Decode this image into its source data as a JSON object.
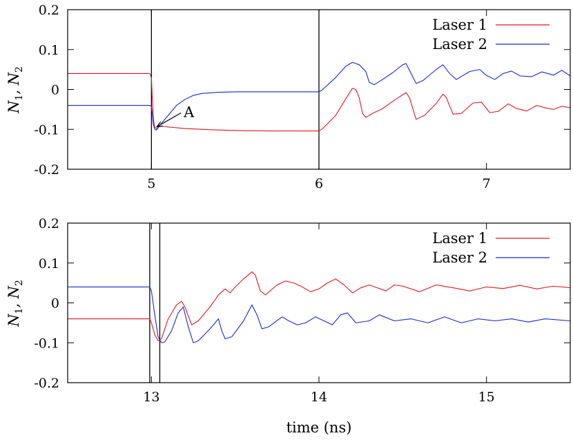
{
  "chart_data": [
    {
      "type": "line",
      "panel": "top",
      "xlabel": "",
      "ylabel_main": "N",
      "ylabel_sub1": "1",
      "ylabel_sep": ", N",
      "ylabel_sub2": "2",
      "xlim": [
        4.5,
        7.5
      ],
      "ylim": [
        -0.2,
        0.2
      ],
      "xticks": [
        5,
        6,
        7
      ],
      "xtick_labels": [
        "5",
        "6",
        "7"
      ],
      "yticks": [
        -0.2,
        -0.1,
        0,
        0.1,
        0.2
      ],
      "ytick_labels": [
        "-0.2",
        "-0.1",
        "0",
        "0.1",
        "0.2"
      ],
      "vlines": [
        5.0,
        6.0
      ],
      "legend_position": "top-right",
      "annotation": {
        "text": "A",
        "x": 5.02,
        "y": -0.097
      },
      "series": [
        {
          "name": "Laser 1",
          "color": "#e8141e",
          "points": [
            [
              4.5,
              0.04
            ],
            [
              4.99,
              0.04
            ],
            [
              5.0,
              0.03
            ],
            [
              5.005,
              -0.02
            ],
            [
              5.01,
              -0.06
            ],
            [
              5.015,
              -0.085
            ],
            [
              5.02,
              -0.095
            ],
            [
              5.03,
              -0.098
            ],
            [
              5.04,
              -0.094
            ],
            [
              5.06,
              -0.092
            ],
            [
              5.1,
              -0.094
            ],
            [
              5.2,
              -0.098
            ],
            [
              5.35,
              -0.101
            ],
            [
              5.5,
              -0.103
            ],
            [
              5.7,
              -0.104
            ],
            [
              6.0,
              -0.104
            ],
            [
              6.02,
              -0.099
            ],
            [
              6.1,
              -0.065
            ],
            [
              6.18,
              -0.01
            ],
            [
              6.2,
              0.003
            ],
            [
              6.22,
              0.0
            ],
            [
              6.24,
              -0.02
            ],
            [
              6.26,
              -0.06
            ],
            [
              6.28,
              -0.07
            ],
            [
              6.32,
              -0.06
            ],
            [
              6.38,
              -0.048
            ],
            [
              6.45,
              -0.027
            ],
            [
              6.52,
              -0.008
            ],
            [
              6.54,
              -0.02
            ],
            [
              6.58,
              -0.075
            ],
            [
              6.63,
              -0.065
            ],
            [
              6.7,
              -0.035
            ],
            [
              6.74,
              -0.012
            ],
            [
              6.76,
              -0.02
            ],
            [
              6.8,
              -0.062
            ],
            [
              6.85,
              -0.06
            ],
            [
              6.92,
              -0.034
            ],
            [
              6.97,
              -0.032
            ],
            [
              7.02,
              -0.058
            ],
            [
              7.07,
              -0.055
            ],
            [
              7.13,
              -0.036
            ],
            [
              7.18,
              -0.048
            ],
            [
              7.24,
              -0.054
            ],
            [
              7.3,
              -0.04
            ],
            [
              7.35,
              -0.046
            ],
            [
              7.4,
              -0.05
            ],
            [
              7.45,
              -0.042
            ],
            [
              7.5,
              -0.046
            ]
          ]
        },
        {
          "name": "Laser 2",
          "color": "#1428d8",
          "points": [
            [
              4.5,
              -0.04
            ],
            [
              4.99,
              -0.04
            ],
            [
              5.0,
              -0.042
            ],
            [
              5.005,
              -0.06
            ],
            [
              5.01,
              -0.085
            ],
            [
              5.02,
              -0.1
            ],
            [
              5.03,
              -0.102
            ],
            [
              5.05,
              -0.09
            ],
            [
              5.1,
              -0.065
            ],
            [
              5.15,
              -0.04
            ],
            [
              5.2,
              -0.025
            ],
            [
              5.25,
              -0.015
            ],
            [
              5.3,
              -0.01
            ],
            [
              5.4,
              -0.007
            ],
            [
              5.5,
              -0.006
            ],
            [
              6.0,
              -0.006
            ],
            [
              6.02,
              -0.001
            ],
            [
              6.1,
              0.03
            ],
            [
              6.16,
              0.058
            ],
            [
              6.2,
              0.068
            ],
            [
              6.24,
              0.062
            ],
            [
              6.28,
              0.045
            ],
            [
              6.3,
              0.018
            ],
            [
              6.33,
              0.012
            ],
            [
              6.38,
              0.025
            ],
            [
              6.44,
              0.042
            ],
            [
              6.5,
              0.062
            ],
            [
              6.52,
              0.065
            ],
            [
              6.55,
              0.04
            ],
            [
              6.58,
              0.015
            ],
            [
              6.62,
              0.022
            ],
            [
              6.7,
              0.05
            ],
            [
              6.74,
              0.062
            ],
            [
              6.78,
              0.04
            ],
            [
              6.82,
              0.025
            ],
            [
              6.9,
              0.045
            ],
            [
              6.96,
              0.05
            ],
            [
              7.0,
              0.035
            ],
            [
              7.05,
              0.025
            ],
            [
              7.1,
              0.04
            ],
            [
              7.15,
              0.046
            ],
            [
              7.2,
              0.034
            ],
            [
              7.27,
              0.032
            ],
            [
              7.33,
              0.044
            ],
            [
              7.4,
              0.036
            ],
            [
              7.45,
              0.048
            ],
            [
              7.5,
              0.034
            ]
          ]
        }
      ]
    },
    {
      "type": "line",
      "panel": "bottom",
      "xlabel": "time (ns)",
      "ylabel_main": "N",
      "ylabel_sub1": "1",
      "ylabel_sep": ", N",
      "ylabel_sub2": "2",
      "xlim": [
        12.5,
        15.5
      ],
      "ylim": [
        -0.2,
        0.2
      ],
      "xticks": [
        13,
        14,
        15
      ],
      "xtick_labels": [
        "13",
        "14",
        "15"
      ],
      "yticks": [
        -0.2,
        -0.1,
        0,
        0.1,
        0.2
      ],
      "ytick_labels": [
        "-0.2",
        "-0.1",
        "0",
        "0.1",
        "0.2"
      ],
      "vlines": [
        12.99,
        13.05
      ],
      "legend_position": "top-right",
      "series": [
        {
          "name": "Laser 1",
          "color": "#e8141e",
          "points": [
            [
              12.5,
              -0.04
            ],
            [
              12.99,
              -0.04
            ],
            [
              13.0,
              -0.05
            ],
            [
              13.02,
              -0.08
            ],
            [
              13.04,
              -0.095
            ],
            [
              13.06,
              -0.09
            ],
            [
              13.1,
              -0.04
            ],
            [
              13.15,
              -0.005
            ],
            [
              13.18,
              0.004
            ],
            [
              13.2,
              -0.01
            ],
            [
              13.24,
              -0.055
            ],
            [
              13.28,
              -0.045
            ],
            [
              13.35,
              -0.01
            ],
            [
              13.4,
              0.02
            ],
            [
              13.44,
              0.035
            ],
            [
              13.47,
              0.025
            ],
            [
              13.5,
              0.04
            ],
            [
              13.55,
              0.06
            ],
            [
              13.6,
              0.078
            ],
            [
              13.62,
              0.07
            ],
            [
              13.65,
              0.03
            ],
            [
              13.68,
              0.02
            ],
            [
              13.75,
              0.045
            ],
            [
              13.8,
              0.055
            ],
            [
              13.85,
              0.05
            ],
            [
              13.9,
              0.04
            ],
            [
              13.95,
              0.028
            ],
            [
              14.0,
              0.035
            ],
            [
              14.05,
              0.05
            ],
            [
              14.1,
              0.06
            ],
            [
              14.15,
              0.045
            ],
            [
              14.2,
              0.025
            ],
            [
              14.25,
              0.038
            ],
            [
              14.3,
              0.045
            ],
            [
              14.4,
              0.03
            ],
            [
              14.45,
              0.045
            ],
            [
              14.5,
              0.042
            ],
            [
              14.6,
              0.028
            ],
            [
              14.7,
              0.045
            ],
            [
              14.8,
              0.038
            ],
            [
              14.9,
              0.03
            ],
            [
              15.0,
              0.04
            ],
            [
              15.1,
              0.036
            ],
            [
              15.2,
              0.044
            ],
            [
              15.3,
              0.035
            ],
            [
              15.4,
              0.042
            ],
            [
              15.5,
              0.038
            ]
          ]
        },
        {
          "name": "Laser 2",
          "color": "#1428d8",
          "points": [
            [
              12.5,
              0.04
            ],
            [
              12.99,
              0.04
            ],
            [
              13.0,
              0.03
            ],
            [
              13.02,
              -0.03
            ],
            [
              13.04,
              -0.085
            ],
            [
              13.06,
              -0.1
            ],
            [
              13.08,
              -0.098
            ],
            [
              13.12,
              -0.07
            ],
            [
              13.16,
              -0.025
            ],
            [
              13.19,
              -0.01
            ],
            [
              13.22,
              -0.06
            ],
            [
              13.25,
              -0.1
            ],
            [
              13.28,
              -0.095
            ],
            [
              13.35,
              -0.065
            ],
            [
              13.4,
              -0.04
            ],
            [
              13.42,
              -0.07
            ],
            [
              13.44,
              -0.09
            ],
            [
              13.48,
              -0.085
            ],
            [
              13.55,
              -0.045
            ],
            [
              13.6,
              -0.005
            ],
            [
              13.63,
              -0.03
            ],
            [
              13.66,
              -0.065
            ],
            [
              13.7,
              -0.06
            ],
            [
              13.78,
              -0.035
            ],
            [
              13.82,
              -0.045
            ],
            [
              13.87,
              -0.055
            ],
            [
              13.92,
              -0.05
            ],
            [
              13.98,
              -0.035
            ],
            [
              14.03,
              -0.045
            ],
            [
              14.08,
              -0.055
            ],
            [
              14.13,
              -0.03
            ],
            [
              14.17,
              -0.025
            ],
            [
              14.22,
              -0.05
            ],
            [
              14.3,
              -0.045
            ],
            [
              14.36,
              -0.03
            ],
            [
              14.45,
              -0.045
            ],
            [
              14.55,
              -0.04
            ],
            [
              14.65,
              -0.05
            ],
            [
              14.75,
              -0.035
            ],
            [
              14.85,
              -0.05
            ],
            [
              14.95,
              -0.04
            ],
            [
              15.05,
              -0.045
            ],
            [
              15.15,
              -0.04
            ],
            [
              15.25,
              -0.048
            ],
            [
              15.35,
              -0.04
            ],
            [
              15.5,
              -0.045
            ]
          ]
        }
      ]
    }
  ]
}
